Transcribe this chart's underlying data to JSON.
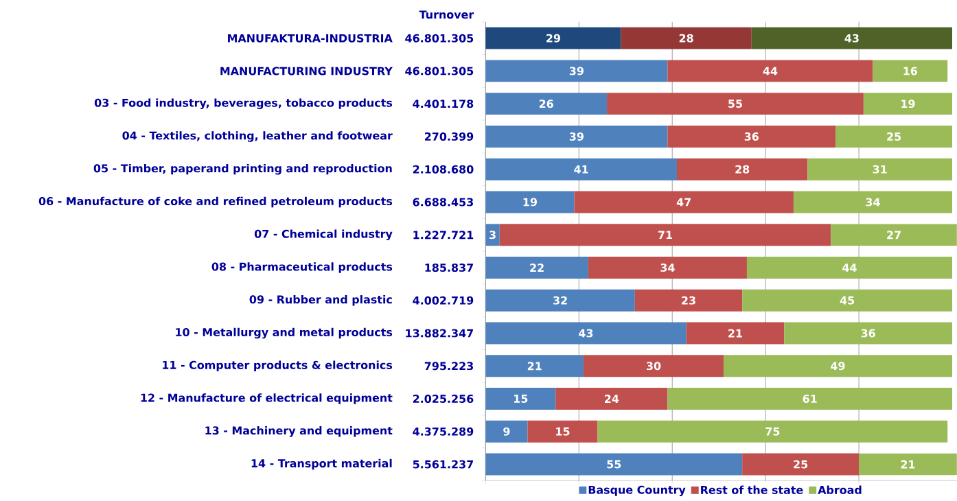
{
  "chart_data": {
    "type": "bar",
    "orientation": "horizontal",
    "stacked": true,
    "data_labels": true,
    "grid": "x",
    "legend": "bottom",
    "tick_labels": "y",
    "xlim": [
      0,
      101
    ],
    "xticks": [
      {
        "value": 0,
        "label": null
      },
      {
        "value": 20,
        "label": null
      },
      {
        "value": 40,
        "label": null
      },
      {
        "value": 60,
        "label": null
      },
      {
        "value": 80,
        "label": null
      }
    ],
    "categories": [
      "MANUFAKTURA-INDUSTRIA",
      "MANUFACTURING INDUSTRY",
      "03 - Food industry, beverages, tobacco products",
      "04 - Textiles, clothing, leather and footwear",
      "05 - Timber, paperand printing and reproduction",
      "06 - Manufacture of coke and refined petroleum products",
      "07 - Chemical industry",
      "08 - Pharmaceutical products",
      "09 - Rubber and plastic",
      "10 - Metallurgy and metal products",
      "11 - Computer products & electronics",
      "12 - Manufacture of electrical equipment",
      "13 - Machinery and equipment",
      "14 - Transport material"
    ],
    "annotations": [
      "Turnover",
      "46.801.305",
      "46.801.305",
      "4.401.178",
      "270.399",
      "2.108.680",
      "6.688.453",
      "1.227.721",
      "185.837",
      "4.002.719",
      "13.882.347",
      "795.223",
      "2.025.256",
      "4.375.289",
      "5.561.237"
    ],
    "series": [
      {
        "name": "Basque Country",
        "color": "#4f81bd",
        "colors": [
          "#1f497d",
          "#4f81bd",
          "#4f81bd",
          "#4f81bd",
          "#4f81bd",
          "#4f81bd",
          "#4f81bd",
          "#4f81bd",
          "#4f81bd",
          "#4f81bd",
          "#4f81bd",
          "#4f81bd",
          "#4f81bd",
          "#4f81bd"
        ],
        "values": [
          29,
          39,
          26,
          39,
          41,
          19,
          3,
          22,
          32,
          43,
          21,
          15,
          9,
          55
        ]
      },
      {
        "name": "Rest of the state",
        "color": "#c0504d",
        "colors": [
          "#953735",
          "#c0504d",
          "#c0504d",
          "#c0504d",
          "#c0504d",
          "#c0504d",
          "#c0504d",
          "#c0504d",
          "#c0504d",
          "#c0504d",
          "#c0504d",
          "#c0504d",
          "#c0504d",
          "#c0504d"
        ],
        "values": [
          28,
          44,
          55,
          36,
          28,
          47,
          71,
          34,
          23,
          21,
          30,
          24,
          15,
          25
        ]
      },
      {
        "name": "Abroad",
        "color": "#9bbb59",
        "colors": [
          "#4f6228",
          "#9bbb59",
          "#9bbb59",
          "#9bbb59",
          "#9bbb59",
          "#9bbb59",
          "#9bbb59",
          "#9bbb59",
          "#9bbb59",
          "#9bbb59",
          "#9bbb59",
          "#9bbb59",
          "#9bbb59",
          "#9bbb59"
        ],
        "values": [
          43,
          16,
          19,
          25,
          31,
          34,
          27,
          44,
          45,
          36,
          49,
          61,
          75,
          21
        ]
      }
    ]
  }
}
